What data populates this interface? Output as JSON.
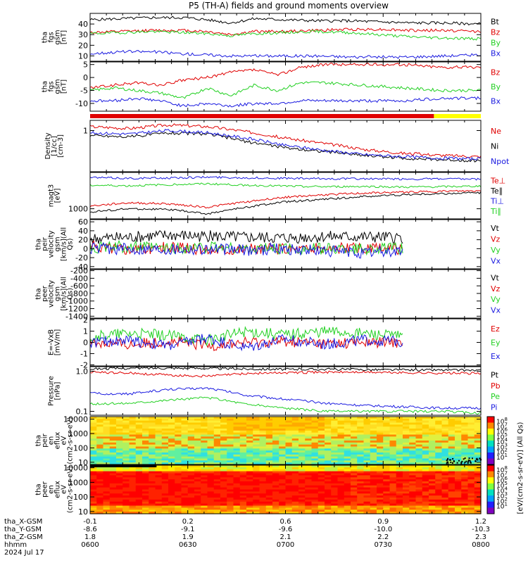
{
  "title": "P5 (TH-A) fields and ground moments overview",
  "colors": {
    "black": "#000000",
    "red": "#e00000",
    "green": "#22d022",
    "blue": "#1a1ae0",
    "yellow": "#ffff00",
    "barRed": "#e00000"
  },
  "ephemeris": {
    "rows": [
      {
        "label": "tha_X-GSM",
        "values": [
          "-0.1",
          "0.2",
          "0.6",
          "0.9",
          "1.2"
        ]
      },
      {
        "label": "tha_Y-GSM",
        "values": [
          "-8.6",
          "-9.1",
          "-9.6",
          "-10.0",
          "-10.3"
        ]
      },
      {
        "label": "tha_Z-GSM",
        "values": [
          "1.8",
          "1.9",
          "2.1",
          "2.2",
          "2.3"
        ]
      },
      {
        "label": "hhmm",
        "values": [
          "0600",
          "0630",
          "0700",
          "0730",
          "0800"
        ]
      }
    ],
    "date": "2024 Jul 17"
  },
  "colorbar": {
    "unit_label": "[eV/(cm2-s-sr-eV)] (All Qs)",
    "ticks_ion": [
      "10^8",
      "10^7",
      "10^6",
      "10^5",
      "10^4",
      "10^3",
      "10^2",
      "10^1"
    ],
    "ticks_electron": [
      "10^8",
      "10^7",
      "10^6",
      "10^5",
      "10^4",
      "10^3",
      "10^2",
      "10^1"
    ]
  },
  "chart_data": [
    {
      "id": "bt-panel",
      "type": "line",
      "ylabel": "tha fgs gsm [nT]",
      "ylim": [
        5,
        50
      ],
      "yticks": [
        10,
        20,
        30,
        40
      ],
      "series": [
        {
          "name": "Bt",
          "color": "black",
          "x": [
            0,
            0.08,
            0.16,
            0.24,
            0.3,
            0.36,
            0.42,
            0.5,
            0.58,
            0.66,
            0.74,
            0.82,
            0.9,
            1.0
          ],
          "values": [
            44,
            45,
            46,
            46,
            44,
            41,
            45,
            44,
            43,
            43,
            42,
            41,
            41,
            40
          ]
        },
        {
          "name": "Bz",
          "color": "red",
          "x": [
            0,
            0.08,
            0.16,
            0.24,
            0.3,
            0.36,
            0.42,
            0.5,
            0.58,
            0.66,
            0.74,
            0.82,
            0.9,
            1.0
          ],
          "values": [
            32,
            33,
            34,
            34,
            33,
            30,
            33,
            33,
            34,
            35,
            35,
            34,
            34,
            33
          ]
        },
        {
          "name": "By",
          "color": "green",
          "x": [
            0,
            0.08,
            0.16,
            0.24,
            0.3,
            0.36,
            0.42,
            0.5,
            0.58,
            0.66,
            0.74,
            0.82,
            0.9,
            1.0
          ],
          "values": [
            31,
            32,
            33,
            32,
            31,
            29,
            31,
            32,
            33,
            32,
            30,
            28,
            27,
            26
          ]
        },
        {
          "name": "Bx",
          "color": "blue",
          "x": [
            0,
            0.08,
            0.16,
            0.24,
            0.3,
            0.36,
            0.42,
            0.5,
            0.58,
            0.66,
            0.74,
            0.82,
            0.9,
            1.0
          ],
          "values": [
            12,
            14,
            14,
            12,
            11,
            10,
            10,
            10,
            10,
            9,
            9,
            9,
            10,
            11
          ]
        }
      ]
    },
    {
      "id": "b-components-panel",
      "type": "line",
      "ylabel": "tha fgs gsm [nT]",
      "ylim": [
        -13,
        6
      ],
      "yticks": [
        -10,
        -5,
        0,
        5
      ],
      "series": [
        {
          "name": "Bz",
          "color": "red",
          "x": [
            0,
            0.06,
            0.12,
            0.18,
            0.24,
            0.3,
            0.36,
            0.42,
            0.48,
            0.54,
            0.6,
            0.7,
            0.8,
            0.9,
            1.0
          ],
          "values": [
            -4,
            -3,
            -2,
            -3,
            -1,
            0,
            2,
            3,
            1,
            4,
            5,
            5,
            5,
            4,
            4
          ]
        },
        {
          "name": "By",
          "color": "green",
          "x": [
            0,
            0.06,
            0.12,
            0.18,
            0.24,
            0.3,
            0.36,
            0.42,
            0.48,
            0.54,
            0.6,
            0.7,
            0.8,
            0.9,
            1.0
          ],
          "values": [
            -5,
            -4,
            -5,
            -6,
            -8,
            -4,
            -7,
            -3,
            -5,
            -2,
            -2,
            -3,
            -4,
            -5,
            -5
          ]
        },
        {
          "name": "Bx",
          "color": "blue",
          "x": [
            0,
            0.06,
            0.12,
            0.18,
            0.24,
            0.3,
            0.36,
            0.42,
            0.48,
            0.54,
            0.6,
            0.7,
            0.8,
            0.9,
            1.0
          ],
          "values": [
            -9,
            -9,
            -8,
            -9,
            -11,
            -10,
            -11,
            -10,
            -10,
            -9,
            -9,
            -9,
            -9,
            -8,
            -8
          ]
        }
      ]
    },
    {
      "id": "density-panel",
      "type": "line",
      "ylabel": "Density [1/cc] [cm-3]",
      "ylim": [
        0.15,
        1.6
      ],
      "log": true,
      "yticks": [
        1
      ],
      "series": [
        {
          "name": "Ne",
          "color": "red",
          "x": [
            0,
            0.1,
            0.2,
            0.3,
            0.4,
            0.5,
            0.6,
            0.7,
            0.8,
            0.9,
            1.0
          ],
          "values": [
            1.2,
            1.1,
            1.3,
            1.2,
            0.95,
            0.7,
            0.55,
            0.42,
            0.35,
            0.32,
            0.3
          ]
        },
        {
          "name": "Ni",
          "color": "black",
          "x": [
            0,
            0.1,
            0.2,
            0.3,
            0.4,
            0.5,
            0.6,
            0.7,
            0.8,
            0.9,
            1.0
          ],
          "values": [
            0.8,
            0.75,
            0.9,
            0.85,
            0.6,
            0.45,
            0.38,
            0.32,
            0.28,
            0.26,
            0.25
          ]
        },
        {
          "name": "Npot",
          "color": "blue",
          "x": [
            0,
            0.1,
            0.2,
            0.3,
            0.4,
            0.5,
            0.6,
            0.7,
            0.8,
            0.9,
            1.0
          ],
          "values": [
            0.9,
            0.85,
            1.0,
            0.9,
            0.7,
            0.5,
            0.4,
            0.33,
            0.3,
            0.28,
            0.27
          ]
        }
      ]
    },
    {
      "id": "temperature-panel",
      "type": "line",
      "ylabel": "magt3 [eV]",
      "ylim": [
        500,
        12000
      ],
      "log": true,
      "yticks": [
        1000
      ],
      "series": [
        {
          "name": "Te⊥",
          "color": "red",
          "x": [
            0,
            0.1,
            0.2,
            0.3,
            0.4,
            0.5,
            0.6,
            0.7,
            0.8,
            0.9,
            1.0
          ],
          "values": [
            1200,
            1500,
            1400,
            1100,
            1600,
            2200,
            2600,
            2900,
            3100,
            3300,
            3400
          ]
        },
        {
          "name": "Te∥",
          "color": "black",
          "x": [
            0,
            0.1,
            0.2,
            0.3,
            0.4,
            0.5,
            0.6,
            0.7,
            0.8,
            0.9,
            1.0
          ],
          "values": [
            800,
            1000,
            950,
            700,
            1100,
            1600,
            1900,
            2300,
            2600,
            2800,
            3000
          ]
        },
        {
          "name": "Ti⊥",
          "color": "blue",
          "x": [
            0,
            0.1,
            0.2,
            0.3,
            0.4,
            0.5,
            0.6,
            0.7,
            0.8,
            0.9,
            1.0
          ],
          "values": [
            8500,
            8000,
            8200,
            8700,
            8300,
            8000,
            7800,
            7800,
            7600,
            7700,
            7500
          ]
        },
        {
          "name": "Ti∥",
          "color": "green",
          "x": [
            0,
            0.1,
            0.2,
            0.3,
            0.4,
            0.5,
            0.6,
            0.7,
            0.8,
            0.9,
            1.0
          ],
          "values": [
            5000,
            4800,
            5200,
            5500,
            5000,
            4700,
            4500,
            4600,
            4400,
            4500,
            4700
          ]
        }
      ]
    },
    {
      "id": "ion-velocity-panel",
      "type": "line",
      "ylabel": "tha peir velocity gsm [km/s](All Qs)",
      "ylim": [
        -45,
        65
      ],
      "yticks": [
        -40,
        -20,
        0,
        20,
        40,
        60
      ],
      "data_end": 0.8,
      "series": [
        {
          "name": "Vt",
          "color": "black",
          "x": [
            0,
            0.1,
            0.2,
            0.3,
            0.4,
            0.5,
            0.6,
            0.7,
            0.8
          ],
          "values": [
            22,
            25,
            30,
            28,
            25,
            24,
            27,
            26,
            25
          ]
        },
        {
          "name": "Vz",
          "color": "red",
          "x": [
            0,
            0.1,
            0.2,
            0.3,
            0.4,
            0.5,
            0.6,
            0.7,
            0.8
          ],
          "values": [
            5,
            0,
            2,
            -2,
            0,
            0,
            0,
            0,
            0
          ]
        },
        {
          "name": "Vy",
          "color": "green",
          "x": [
            0,
            0.1,
            0.2,
            0.3,
            0.4,
            0.5,
            0.6,
            0.7,
            0.8
          ],
          "values": [
            2,
            5,
            0,
            3,
            0,
            0,
            0,
            0,
            0
          ]
        },
        {
          "name": "Vx",
          "color": "blue",
          "x": [
            0,
            0.1,
            0.2,
            0.3,
            0.4,
            0.5,
            0.6,
            0.7,
            0.8
          ],
          "values": [
            0,
            0,
            0,
            0,
            -3,
            0,
            -5,
            -10,
            -5
          ]
        }
      ]
    },
    {
      "id": "electron-velocity-panel",
      "type": "line",
      "ylabel": "tha peer velocity gsm [km/s](All Qs)",
      "ylim": [
        -1450,
        -170
      ],
      "yticks": [
        -200,
        -400,
        -600,
        -800,
        -1000,
        -1200,
        -1400
      ],
      "series": [
        {
          "name": "Vt",
          "color": "black",
          "x": [],
          "values": []
        },
        {
          "name": "Vz",
          "color": "red",
          "x": [],
          "values": []
        },
        {
          "name": "Vy",
          "color": "green",
          "x": [],
          "values": []
        },
        {
          "name": "Vx",
          "color": "blue",
          "x": [],
          "values": []
        }
      ]
    },
    {
      "id": "efield-panel",
      "type": "line",
      "ylabel": "E=-VxB [mV/m]",
      "ylim": [
        -2.1,
        2.1
      ],
      "yticks": [
        -2,
        -1,
        0,
        1,
        2
      ],
      "data_end": 0.8,
      "series": [
        {
          "name": "Ez",
          "color": "red",
          "x": [
            0,
            0.1,
            0.2,
            0.3,
            0.4,
            0.5,
            0.6,
            0.7,
            0.8
          ],
          "values": [
            0,
            -0.2,
            0.1,
            -0.3,
            0,
            0.1,
            -0.1,
            0,
            0
          ]
        },
        {
          "name": "Ey",
          "color": "green",
          "x": [
            0,
            0.1,
            0.2,
            0.3,
            0.4,
            0.5,
            0.6,
            0.7,
            0.8
          ],
          "values": [
            0.5,
            0.8,
            0.6,
            0.2,
            1.0,
            0.7,
            1.0,
            0.8,
            0.5
          ]
        },
        {
          "name": "Ex",
          "color": "blue",
          "x": [
            0,
            0.1,
            0.2,
            0.3,
            0.4,
            0.5,
            0.6,
            0.7,
            0.8
          ],
          "values": [
            0,
            0.2,
            -0.3,
            0.4,
            -0.5,
            0.3,
            -0.2,
            0.2,
            0.1
          ]
        }
      ]
    },
    {
      "id": "pressure-panel",
      "type": "line",
      "ylabel": "Pressure [nPa]",
      "ylim": [
        0.08,
        1.3
      ],
      "log": true,
      "yticks": [
        0.1,
        1.0
      ],
      "series": [
        {
          "name": "Pt",
          "color": "black",
          "x": [
            0,
            0.1,
            0.2,
            0.3,
            0.4,
            0.5,
            0.6,
            0.7,
            0.8,
            0.9,
            1.0
          ],
          "values": [
            1.15,
            1.18,
            1.2,
            1.18,
            1.14,
            1.12,
            1.12,
            1.1,
            1.08,
            1.07,
            1.05
          ]
        },
        {
          "name": "Pb",
          "color": "red",
          "x": [
            0,
            0.1,
            0.2,
            0.3,
            0.4,
            0.5,
            0.6,
            0.7,
            0.8,
            0.9,
            1.0
          ],
          "values": [
            0.95,
            0.9,
            0.8,
            0.75,
            0.88,
            0.92,
            0.95,
            0.95,
            0.92,
            0.9,
            0.88
          ]
        },
        {
          "name": "Pe",
          "color": "green",
          "x": [
            0,
            0.1,
            0.2,
            0.3,
            0.4,
            0.5,
            0.6,
            0.7,
            0.8,
            0.9,
            1.0
          ],
          "values": [
            0.15,
            0.16,
            0.19,
            0.22,
            0.15,
            0.12,
            0.1,
            0.1,
            0.1,
            0.1,
            0.09
          ]
        },
        {
          "name": "Pi",
          "color": "blue",
          "x": [
            0,
            0.1,
            0.2,
            0.3,
            0.4,
            0.5,
            0.6,
            0.7,
            0.8,
            0.9,
            1.0
          ],
          "values": [
            0.28,
            0.27,
            0.35,
            0.38,
            0.25,
            0.2,
            0.16,
            0.14,
            0.13,
            0.12,
            0.12
          ]
        }
      ]
    },
    {
      "id": "ion-spectrogram",
      "type": "heatmap",
      "ylabel": "tha peir en eflux eV (cm2-s-sr-eV)",
      "ylim": [
        7,
        15000
      ],
      "log": true,
      "yticks": [
        10,
        100,
        1000,
        10000
      ]
    },
    {
      "id": "electron-spectrogram",
      "type": "heatmap",
      "ylabel": "tha peer en eflux eV (cm2-s-sr-eV)",
      "ylim": [
        7,
        15000
      ],
      "log": true,
      "yticks": [
        10,
        100,
        1000,
        10000
      ]
    }
  ]
}
